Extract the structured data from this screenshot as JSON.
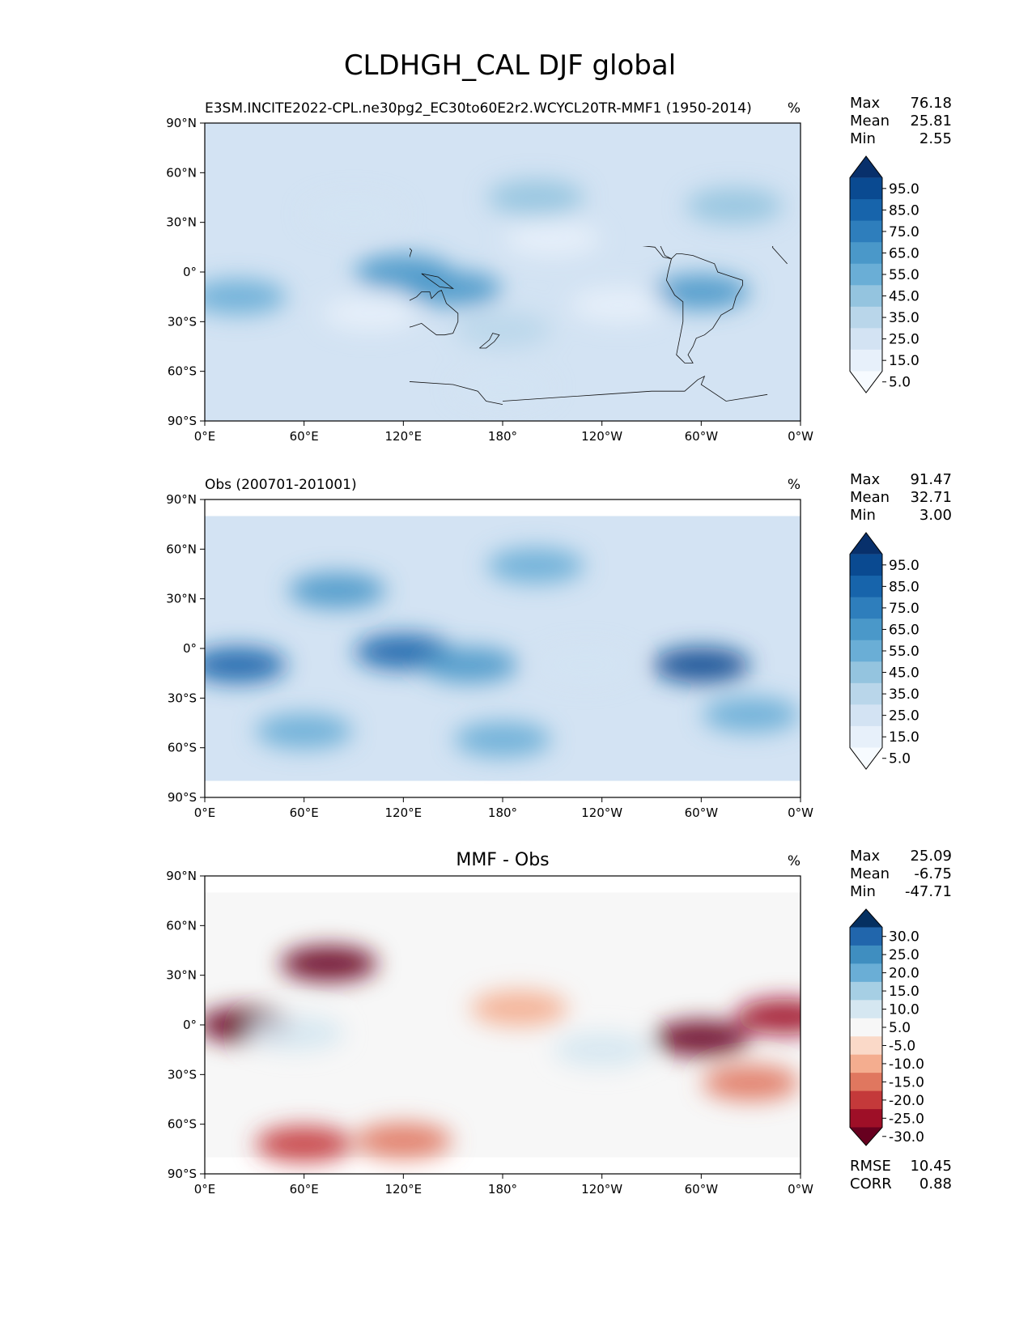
{
  "figure_title": "CLDHGH_CAL DJF global",
  "chart_data": [
    {
      "type": "heatmap",
      "title": "E3SM.INCITE2022-CPL.ne30pg2_EC30to60E2r2.WCYCL20TR-MMF1 (1950-2014)",
      "units": "%",
      "stats": {
        "max_label": "Max",
        "max": "76.18",
        "mean_label": "Mean",
        "mean": "25.81",
        "min_label": "Min",
        "min": "2.55"
      },
      "x_ticks": [
        "0°E",
        "60°E",
        "120°E",
        "180°",
        "120°W",
        "60°W",
        "0°W"
      ],
      "y_ticks": [
        "90°N",
        "60°N",
        "30°N",
        "0°",
        "30°S",
        "60°S",
        "90°S"
      ],
      "xlim": [
        0,
        360
      ],
      "ylim": [
        -90,
        90
      ],
      "colorbar": {
        "labels": [
          "95.0",
          "85.0",
          "75.0",
          "65.0",
          "55.0",
          "45.0",
          "35.0",
          "25.0",
          "15.0",
          "5.0"
        ],
        "colors": [
          "#08306b",
          "#0a4a91",
          "#1764ab",
          "#2e7ebc",
          "#4a98c9",
          "#6aaed6",
          "#94c4df",
          "#b9d6ea",
          "#d3e3f3",
          "#e7f0fa",
          "#f7fbff"
        ]
      },
      "features": [
        {
          "lon": 120,
          "lat": 0,
          "value": 62
        },
        {
          "lon": 150,
          "lat": -10,
          "value": 55
        },
        {
          "lon": 300,
          "lat": -12,
          "value": 58
        },
        {
          "lon": 20,
          "lat": -15,
          "value": 48
        },
        {
          "lon": 200,
          "lat": 45,
          "value": 40
        },
        {
          "lon": 320,
          "lat": 40,
          "value": 38
        },
        {
          "lon": 180,
          "lat": -35,
          "value": 30
        },
        {
          "lon": 100,
          "lat": -25,
          "value": 10
        },
        {
          "lon": 210,
          "lat": 20,
          "value": 12
        },
        {
          "lon": 250,
          "lat": -20,
          "value": 12
        },
        {
          "lon": 90,
          "lat": 35,
          "value": 22
        },
        {
          "lon": 180,
          "lat": -70,
          "value": 18
        }
      ]
    },
    {
      "type": "heatmap",
      "title": "Obs (200701-201001)",
      "units": "%",
      "stats": {
        "max_label": "Max",
        "max": "91.47",
        "mean_label": "Mean",
        "mean": "32.71",
        "min_label": "Min",
        "min": "3.00"
      },
      "x_ticks": [
        "0°E",
        "60°E",
        "120°E",
        "180°",
        "120°W",
        "60°W",
        "0°W"
      ],
      "y_ticks": [
        "90°N",
        "60°N",
        "30°N",
        "0°",
        "30°S",
        "60°S",
        "90°S"
      ],
      "xlim": [
        0,
        360
      ],
      "ylim": [
        -90,
        90
      ],
      "colorbar": {
        "labels": [
          "95.0",
          "85.0",
          "75.0",
          "65.0",
          "55.0",
          "45.0",
          "35.0",
          "25.0",
          "15.0",
          "5.0"
        ],
        "colors": [
          "#08306b",
          "#0a4a91",
          "#1764ab",
          "#2e7ebc",
          "#4a98c9",
          "#6aaed6",
          "#94c4df",
          "#b9d6ea",
          "#d3e3f3",
          "#e7f0fa",
          "#f7fbff"
        ]
      },
      "features": [
        {
          "lon": 20,
          "lat": -10,
          "value": 80
        },
        {
          "lon": 120,
          "lat": -2,
          "value": 78
        },
        {
          "lon": 300,
          "lat": -10,
          "value": 85
        },
        {
          "lon": 160,
          "lat": -10,
          "value": 62
        },
        {
          "lon": 80,
          "lat": 35,
          "value": 55
        },
        {
          "lon": 230,
          "lat": -10,
          "value": 18
        },
        {
          "lon": 200,
          "lat": 50,
          "value": 50
        },
        {
          "lon": 330,
          "lat": -40,
          "value": 50
        },
        {
          "lon": 180,
          "lat": -55,
          "value": 50
        },
        {
          "lon": 60,
          "lat": -50,
          "value": 48
        }
      ]
    },
    {
      "type": "heatmap",
      "title": "MMF - Obs",
      "units": "%",
      "stats": {
        "max_label": "Max",
        "max": "25.09",
        "mean_label": "Mean",
        "mean": "-6.75",
        "min_label": "Min",
        "min": "-47.71"
      },
      "extra_stats": {
        "rmse_label": "RMSE",
        "rmse": "10.45",
        "corr_label": "CORR",
        "corr": "0.88"
      },
      "x_ticks": [
        "0°E",
        "60°E",
        "120°E",
        "180°",
        "120°W",
        "60°W",
        "0°W"
      ],
      "y_ticks": [
        "90°N",
        "60°N",
        "30°N",
        "0°",
        "30°S",
        "60°S",
        "90°S"
      ],
      "xlim": [
        0,
        360
      ],
      "ylim": [
        -90,
        90
      ],
      "colorbar": {
        "labels": [
          "30.0",
          "25.0",
          "20.0",
          "15.0",
          "10.0",
          "5.0",
          "-5.0",
          "-10.0",
          "-15.0",
          "-20.0",
          "-25.0",
          "-30.0"
        ],
        "colors": [
          "#053061",
          "#2166ac",
          "#3f8ec0",
          "#6aaed6",
          "#a6cfe4",
          "#d5e7f1",
          "#f7f7f7",
          "#fad9c8",
          "#f4ad8f",
          "#e0775f",
          "#c4393a",
          "#9e0f27",
          "#67001f"
        ]
      },
      "features": [
        {
          "lon": 300,
          "lat": -8,
          "value": -45
        },
        {
          "lon": 25,
          "lat": 0,
          "value": -35
        },
        {
          "lon": 75,
          "lat": 37,
          "value": -32
        },
        {
          "lon": 120,
          "lat": -70,
          "value": -20
        },
        {
          "lon": 60,
          "lat": -72,
          "value": -22
        },
        {
          "lon": 350,
          "lat": 5,
          "value": -28
        },
        {
          "lon": 240,
          "lat": -15,
          "value": 6
        },
        {
          "lon": 55,
          "lat": -5,
          "value": 8
        },
        {
          "lon": 190,
          "lat": 10,
          "value": -15
        },
        {
          "lon": 330,
          "lat": -35,
          "value": -18
        }
      ]
    }
  ]
}
